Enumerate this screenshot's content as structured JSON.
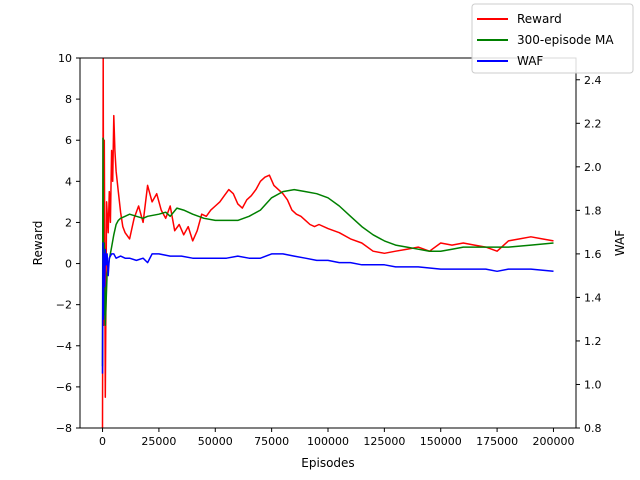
{
  "chart_data": {
    "type": "line",
    "xlabel": "Episodes",
    "ylabel_left": "Reward",
    "ylabel_right": "WAF",
    "xlim": [
      -10000,
      210000
    ],
    "ylim_left": [
      -8,
      10
    ],
    "ylim_right": [
      0.8,
      2.5
    ],
    "x_ticks": [
      0,
      25000,
      50000,
      75000,
      100000,
      125000,
      150000,
      175000,
      200000
    ],
    "y_left_ticks": [
      -8,
      -6,
      -4,
      -2,
      0,
      2,
      4,
      6,
      8,
      10
    ],
    "y_right_ticks": [
      0.8,
      1.0,
      1.2,
      1.4,
      1.6,
      1.8,
      2.0,
      2.2,
      2.4
    ],
    "legend_position": "top-right",
    "grid": false,
    "series": [
      {
        "name": "Reward",
        "color": "#ff0000",
        "axis": "left",
        "x": [
          0,
          300,
          500,
          800,
          1200,
          1800,
          2500,
          3000,
          3500,
          4000,
          4500,
          5000,
          5500,
          6000,
          7000,
          8000,
          9000,
          10000,
          12000,
          14000,
          16000,
          18000,
          20000,
          22000,
          24000,
          26000,
          28000,
          30000,
          32000,
          34000,
          36000,
          38000,
          40000,
          42000,
          44000,
          46000,
          48000,
          50000,
          52000,
          54000,
          56000,
          58000,
          60000,
          62000,
          64000,
          66000,
          68000,
          70000,
          72000,
          74000,
          76000,
          78000,
          80000,
          82000,
          84000,
          86000,
          88000,
          90000,
          92000,
          94000,
          96000,
          100000,
          105000,
          110000,
          115000,
          120000,
          125000,
          130000,
          135000,
          140000,
          145000,
          150000,
          155000,
          160000,
          165000,
          170000,
          175000,
          180000,
          185000,
          190000,
          195000,
          200000
        ],
        "values": [
          -8.0,
          10.0,
          -3.0,
          6.0,
          -6.5,
          3.0,
          1.5,
          3.5,
          2.0,
          5.5,
          4.0,
          7.2,
          5.5,
          4.5,
          3.5,
          2.5,
          1.8,
          1.5,
          1.2,
          2.2,
          2.8,
          2.0,
          3.8,
          3.0,
          3.4,
          2.6,
          2.2,
          2.8,
          1.6,
          1.9,
          1.4,
          1.8,
          1.1,
          1.6,
          2.4,
          2.3,
          2.6,
          2.8,
          3.0,
          3.3,
          3.6,
          3.4,
          2.9,
          2.7,
          3.1,
          3.3,
          3.6,
          4.0,
          4.2,
          4.3,
          3.8,
          3.6,
          3.4,
          3.1,
          2.6,
          2.4,
          2.3,
          2.1,
          1.9,
          1.8,
          1.9,
          1.7,
          1.5,
          1.2,
          1.0,
          0.6,
          0.5,
          0.6,
          0.7,
          0.8,
          0.6,
          1.0,
          0.9,
          1.0,
          0.9,
          0.8,
          0.6,
          1.1,
          1.2,
          1.3,
          1.2,
          1.1
        ]
      },
      {
        "name": "300-episode MA",
        "color": "#008000",
        "axis": "left",
        "x": [
          0,
          200,
          500,
          800,
          1200,
          2000,
          3000,
          4000,
          5000,
          6000,
          7000,
          8000,
          10000,
          12000,
          15000,
          18000,
          20000,
          25000,
          28000,
          30000,
          33000,
          36000,
          40000,
          45000,
          50000,
          55000,
          60000,
          65000,
          70000,
          75000,
          80000,
          85000,
          90000,
          95000,
          100000,
          105000,
          110000,
          115000,
          120000,
          125000,
          130000,
          135000,
          140000,
          145000,
          150000,
          155000,
          160000,
          165000,
          170000,
          175000,
          180000,
          190000,
          200000
        ],
        "values": [
          -5.0,
          6.1,
          -2.5,
          1.0,
          -3.0,
          -0.5,
          0.2,
          0.8,
          1.4,
          1.9,
          2.1,
          2.2,
          2.3,
          2.4,
          2.3,
          2.2,
          2.3,
          2.4,
          2.5,
          2.3,
          2.7,
          2.6,
          2.4,
          2.2,
          2.1,
          2.1,
          2.1,
          2.3,
          2.6,
          3.2,
          3.5,
          3.6,
          3.5,
          3.4,
          3.2,
          2.8,
          2.3,
          1.8,
          1.4,
          1.1,
          0.9,
          0.8,
          0.7,
          0.6,
          0.6,
          0.7,
          0.8,
          0.8,
          0.8,
          0.8,
          0.8,
          0.9,
          1.0
        ]
      },
      {
        "name": "WAF",
        "color": "#0000ff",
        "axis": "right",
        "x": [
          0,
          200,
          400,
          600,
          900,
          1200,
          1600,
          2000,
          2500,
          3000,
          4000,
          5000,
          6000,
          8000,
          10000,
          12000,
          15000,
          18000,
          20000,
          22000,
          25000,
          30000,
          35000,
          40000,
          45000,
          50000,
          55000,
          60000,
          65000,
          70000,
          75000,
          80000,
          85000,
          90000,
          95000,
          100000,
          105000,
          110000,
          115000,
          120000,
          125000,
          130000,
          140000,
          150000,
          160000,
          170000,
          175000,
          180000,
          190000,
          200000
        ],
        "values": [
          1.05,
          1.65,
          1.3,
          1.6,
          1.45,
          1.62,
          1.55,
          1.6,
          1.5,
          1.58,
          1.6,
          1.6,
          1.58,
          1.59,
          1.58,
          1.58,
          1.57,
          1.58,
          1.56,
          1.6,
          1.6,
          1.59,
          1.59,
          1.58,
          1.58,
          1.58,
          1.58,
          1.59,
          1.58,
          1.58,
          1.6,
          1.6,
          1.59,
          1.58,
          1.57,
          1.57,
          1.56,
          1.56,
          1.55,
          1.55,
          1.55,
          1.54,
          1.54,
          1.53,
          1.53,
          1.53,
          1.52,
          1.53,
          1.53,
          1.52
        ]
      }
    ]
  }
}
